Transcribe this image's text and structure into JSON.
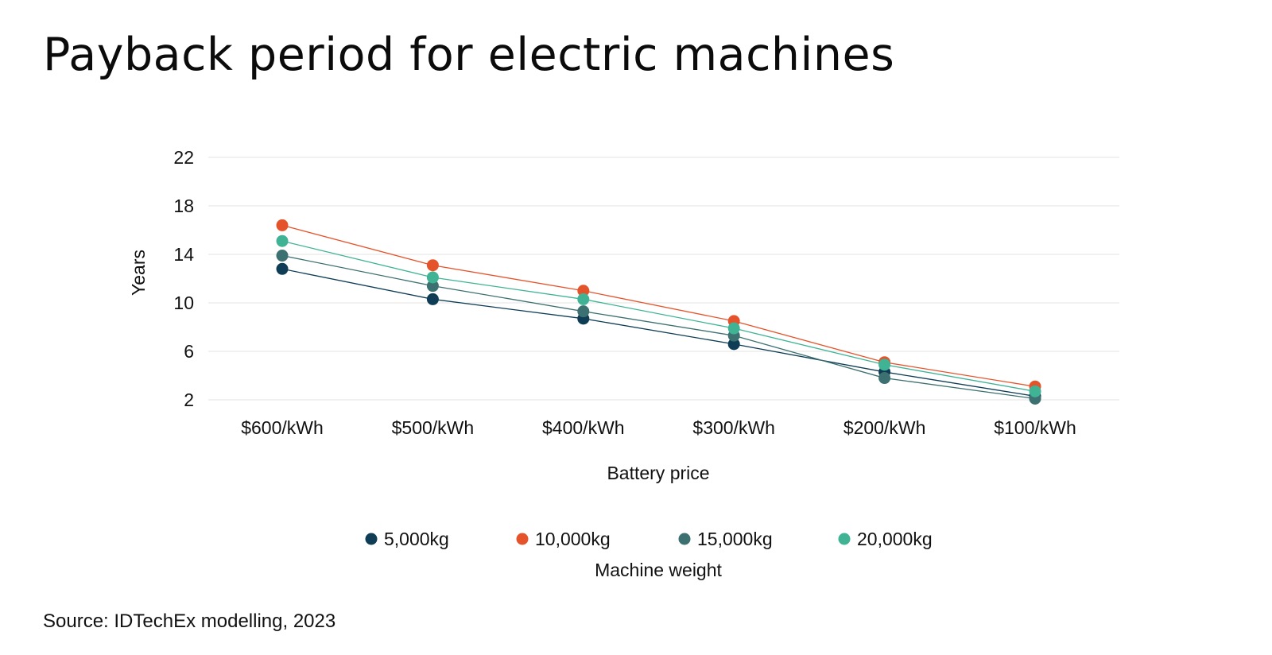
{
  "title": "Payback period for electric machines",
  "source": "Source: IDTechEx modelling, 2023",
  "chart_data": {
    "type": "line",
    "title": "Payback period for electric machines",
    "xlabel": "Battery price",
    "ylabel": "Years",
    "categories": [
      "$600/kWh",
      "$500/kWh",
      "$400/kWh",
      "$300/kWh",
      "$200/kWh",
      "$100/kWh"
    ],
    "yticks": [
      2,
      6,
      10,
      14,
      18,
      22
    ],
    "ylim": [
      2,
      22
    ],
    "grid": true,
    "legend_title": "Machine weight",
    "legend_position": "bottom",
    "series": [
      {
        "name": "5,000kg",
        "color": "#0e3d55",
        "values": [
          12.8,
          10.3,
          8.7,
          6.6,
          4.3,
          2.3
        ]
      },
      {
        "name": "10,000kg",
        "color": "#e5532b",
        "values": [
          16.4,
          13.1,
          11.0,
          8.5,
          5.1,
          3.1
        ]
      },
      {
        "name": "15,000kg",
        "color": "#3d7070",
        "values": [
          13.9,
          11.4,
          9.3,
          7.3,
          3.8,
          2.1
        ]
      },
      {
        "name": "20,000kg",
        "color": "#3fb394",
        "values": [
          15.1,
          12.1,
          10.3,
          7.9,
          4.9,
          2.7
        ]
      }
    ]
  }
}
